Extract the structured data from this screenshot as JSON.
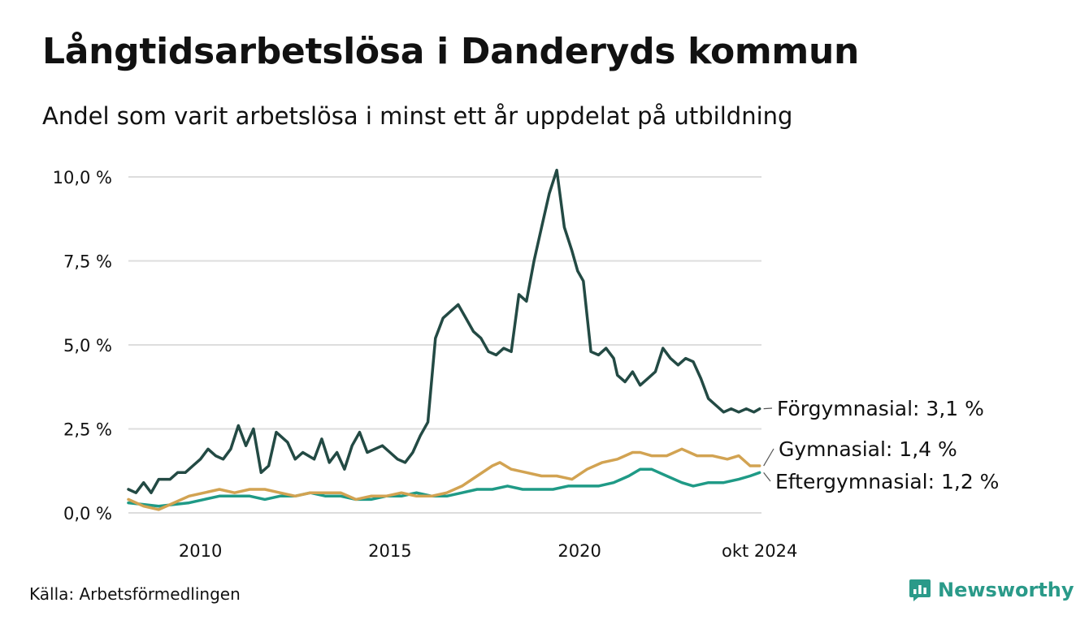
{
  "header": {
    "title": "Långtidsarbetslösa i Danderyds kommun",
    "subtitle": "Andel som varit arbetslösa i minst ett år uppdelat på utbildning"
  },
  "footer": {
    "source": "Källa: Arbetsförmedlingen",
    "brand": "Newsworthy"
  },
  "colors": {
    "forgymnasial": "#234a44",
    "gymnasial": "#d2a352",
    "eftergymnasial": "#1f9a86",
    "grid": "#dddddd",
    "brand": "#2a9a89"
  },
  "chart_data": {
    "type": "line",
    "title": "Långtidsarbetslösa i Danderyds kommun",
    "subtitle": "Andel som varit arbetslösa i minst ett år uppdelat på utbildning",
    "xlabel": "",
    "ylabel": "",
    "xlim": [
      2008.1,
      2024.8
    ],
    "ylim": [
      0,
      10
    ],
    "yticks": [
      {
        "value": 0,
        "label": "0,0 %"
      },
      {
        "value": 2.5,
        "label": "2,5 %"
      },
      {
        "value": 5,
        "label": "5,0 %"
      },
      {
        "value": 7.5,
        "label": "7,5 %"
      },
      {
        "value": 10,
        "label": "10,0 %"
      }
    ],
    "xticks": [
      {
        "value": 2010,
        "label": "2010"
      },
      {
        "value": 2015,
        "label": "2015"
      },
      {
        "value": 2020,
        "label": "2020"
      },
      {
        "value": 2024.75,
        "label": "okt 2024"
      }
    ],
    "grid": true,
    "series": [
      {
        "name": "Förgymnasial",
        "label": "Förgymnasial: 3,1 %",
        "color": "#234a44",
        "x": [
          2008.1,
          2008.3,
          2008.5,
          2008.7,
          2008.9,
          2009.2,
          2009.4,
          2009.6,
          2009.8,
          2010.0,
          2010.2,
          2010.4,
          2010.6,
          2010.8,
          2011.0,
          2011.2,
          2011.4,
          2011.6,
          2011.8,
          2012.0,
          2012.3,
          2012.5,
          2012.7,
          2013.0,
          2013.2,
          2013.4,
          2013.6,
          2013.8,
          2014.0,
          2014.2,
          2014.4,
          2014.6,
          2014.8,
          2015.0,
          2015.2,
          2015.4,
          2015.6,
          2015.8,
          2016.0,
          2016.2,
          2016.4,
          2016.6,
          2016.8,
          2017.0,
          2017.2,
          2017.4,
          2017.6,
          2017.8,
          2018.0,
          2018.2,
          2018.4,
          2018.6,
          2018.8,
          2019.0,
          2019.2,
          2019.4,
          2019.6,
          2019.8,
          2019.95,
          2020.1,
          2020.3,
          2020.5,
          2020.7,
          2020.9,
          2021.0,
          2021.2,
          2021.4,
          2021.6,
          2021.8,
          2022.0,
          2022.2,
          2022.4,
          2022.6,
          2022.8,
          2023.0,
          2023.2,
          2023.4,
          2023.6,
          2023.8,
          2024.0,
          2024.2,
          2024.4,
          2024.6,
          2024.75
        ],
        "values": [
          0.7,
          0.6,
          0.9,
          0.6,
          1.0,
          1.0,
          1.2,
          1.2,
          1.4,
          1.6,
          1.9,
          1.7,
          1.6,
          1.9,
          2.6,
          2.0,
          2.5,
          1.2,
          1.4,
          2.4,
          2.1,
          1.6,
          1.8,
          1.6,
          2.2,
          1.5,
          1.8,
          1.3,
          2.0,
          2.4,
          1.8,
          1.9,
          2.0,
          1.8,
          1.6,
          1.5,
          1.8,
          2.3,
          2.7,
          5.2,
          5.8,
          6.0,
          6.2,
          5.8,
          5.4,
          5.2,
          4.8,
          4.7,
          4.9,
          4.8,
          6.5,
          6.3,
          7.5,
          8.5,
          9.5,
          10.2,
          8.5,
          7.8,
          7.2,
          6.9,
          4.8,
          4.7,
          4.9,
          4.6,
          4.1,
          3.9,
          4.2,
          3.8,
          4.0,
          4.2,
          4.9,
          4.6,
          4.4,
          4.6,
          4.5,
          4.0,
          3.4,
          3.2,
          3.0,
          3.1,
          3.0,
          3.1,
          3.0,
          3.1
        ]
      },
      {
        "name": "Gymnasial",
        "label": "Gymnasial: 1,4 %",
        "color": "#d2a352",
        "x": [
          2008.1,
          2008.5,
          2008.9,
          2009.3,
          2009.7,
          2010.1,
          2010.5,
          2010.9,
          2011.3,
          2011.7,
          2012.1,
          2012.5,
          2012.9,
          2013.3,
          2013.7,
          2014.1,
          2014.5,
          2014.9,
          2015.3,
          2015.7,
          2016.1,
          2016.5,
          2016.9,
          2017.3,
          2017.7,
          2017.9,
          2018.2,
          2018.6,
          2019.0,
          2019.4,
          2019.8,
          2020.2,
          2020.6,
          2021.0,
          2021.4,
          2021.6,
          2021.9,
          2022.3,
          2022.7,
          2023.1,
          2023.5,
          2023.9,
          2024.2,
          2024.5,
          2024.75
        ],
        "values": [
          0.4,
          0.2,
          0.1,
          0.3,
          0.5,
          0.6,
          0.7,
          0.6,
          0.7,
          0.7,
          0.6,
          0.5,
          0.6,
          0.6,
          0.6,
          0.4,
          0.5,
          0.5,
          0.6,
          0.5,
          0.5,
          0.6,
          0.8,
          1.1,
          1.4,
          1.5,
          1.3,
          1.2,
          1.1,
          1.1,
          1.0,
          1.3,
          1.5,
          1.6,
          1.8,
          1.8,
          1.7,
          1.7,
          1.9,
          1.7,
          1.7,
          1.6,
          1.7,
          1.4,
          1.4
        ]
      },
      {
        "name": "Eftergymnasial",
        "label": "Eftergymnasial: 1,2 %",
        "color": "#1f9a86",
        "x": [
          2008.1,
          2008.5,
          2008.9,
          2009.3,
          2009.7,
          2010.1,
          2010.5,
          2010.9,
          2011.3,
          2011.7,
          2012.1,
          2012.5,
          2012.9,
          2013.3,
          2013.7,
          2014.1,
          2014.5,
          2014.9,
          2015.3,
          2015.7,
          2016.1,
          2016.5,
          2016.9,
          2017.3,
          2017.7,
          2018.1,
          2018.5,
          2018.9,
          2019.3,
          2019.7,
          2020.1,
          2020.5,
          2020.9,
          2021.3,
          2021.6,
          2021.9,
          2022.3,
          2022.7,
          2023.0,
          2023.4,
          2023.8,
          2024.2,
          2024.5,
          2024.75
        ],
        "values": [
          0.3,
          0.25,
          0.2,
          0.25,
          0.3,
          0.4,
          0.5,
          0.5,
          0.5,
          0.4,
          0.5,
          0.5,
          0.6,
          0.5,
          0.5,
          0.4,
          0.4,
          0.5,
          0.5,
          0.6,
          0.5,
          0.5,
          0.6,
          0.7,
          0.7,
          0.8,
          0.7,
          0.7,
          0.7,
          0.8,
          0.8,
          0.8,
          0.9,
          1.1,
          1.3,
          1.3,
          1.1,
          0.9,
          0.8,
          0.9,
          0.9,
          1.0,
          1.1,
          1.2
        ]
      }
    ]
  }
}
